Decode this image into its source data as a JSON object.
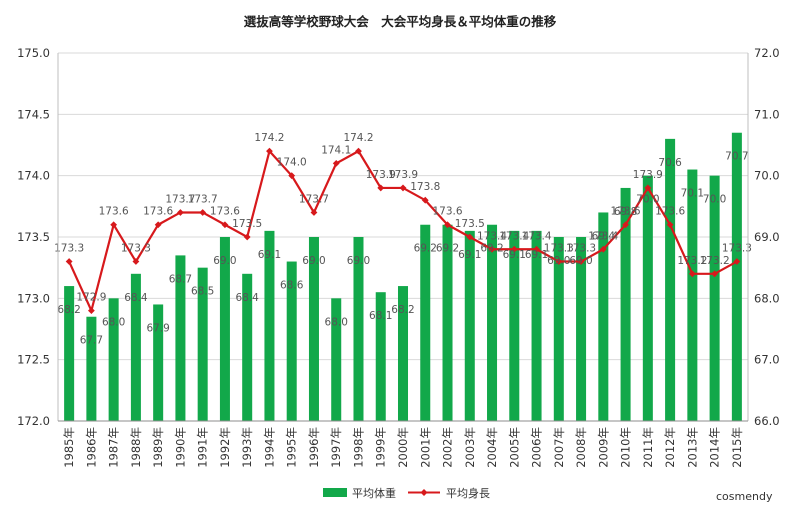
{
  "chart_data": {
    "type": "bar+line",
    "title": "選抜高等学校野球大会　大会平均身長＆平均体重の推移",
    "categories": [
      "1985年",
      "1986年",
      "1987年",
      "1988年",
      "1989年",
      "1990年",
      "1991年",
      "1992年",
      "1993年",
      "1994年",
      "1995年",
      "1996年",
      "1997年",
      "1998年",
      "1999年",
      "2000年",
      "2001年",
      "2002年",
      "2003年",
      "2004年",
      "2005年",
      "2006年",
      "2007年",
      "2008年",
      "2009年",
      "2010年",
      "2011年",
      "2012年",
      "2013年",
      "2014年",
      "2015年"
    ],
    "series": [
      {
        "name": "平均体重",
        "type": "bar",
        "axis": "right",
        "color": "#12a84a",
        "values": [
          68.2,
          67.7,
          68.0,
          68.4,
          67.9,
          68.7,
          68.5,
          69.0,
          68.4,
          69.1,
          68.6,
          69.0,
          68.0,
          69.0,
          68.1,
          68.2,
          69.2,
          69.2,
          69.1,
          69.2,
          69.1,
          69.1,
          69.0,
          69.0,
          69.4,
          69.8,
          70.0,
          70.6,
          70.1,
          70.0,
          70.7
        ]
      },
      {
        "name": "平均身長",
        "type": "line",
        "axis": "left",
        "color": "#d7191c",
        "values": [
          173.3,
          172.9,
          173.6,
          173.3,
          173.6,
          173.7,
          173.7,
          173.6,
          173.5,
          174.2,
          174.0,
          173.7,
          174.1,
          174.2,
          173.9,
          173.9,
          173.8,
          173.6,
          173.5,
          173.4,
          173.4,
          173.4,
          173.3,
          173.3,
          173.4,
          173.6,
          173.9,
          173.6,
          173.2,
          173.2,
          173.3
        ]
      }
    ],
    "y_left": {
      "min": 172.0,
      "max": 175.0,
      "step": 0.5,
      "ticks": [
        "172.0",
        "172.5",
        "173.0",
        "173.5",
        "174.0",
        "174.5",
        "175.0"
      ]
    },
    "y_right": {
      "min": 66.0,
      "max": 72.0,
      "step": 1.0,
      "ticks": [
        "66.0",
        "67.0",
        "68.0",
        "69.0",
        "70.0",
        "71.0",
        "72.0"
      ]
    },
    "grid": "horizontal",
    "legend_position": "bottom"
  },
  "credit": "cosmendy"
}
